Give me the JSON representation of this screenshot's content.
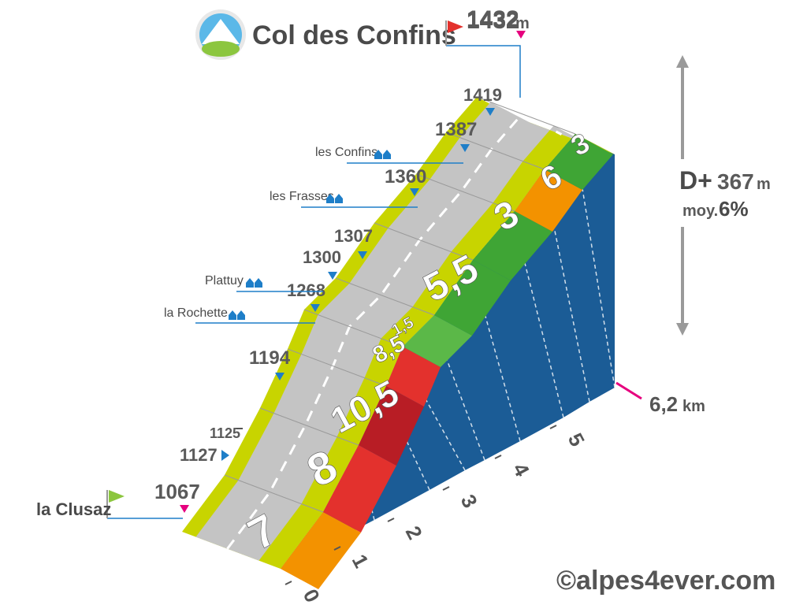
{
  "title": "Col des Confins",
  "summit": {
    "altitude": "1432",
    "unit": "m"
  },
  "start": {
    "name": "la Clusaz",
    "altitude": "1067"
  },
  "stats": {
    "gain_label": "D+",
    "gain_value": "367",
    "gain_unit": "m",
    "avg_label": "moy.",
    "avg_value": "6%"
  },
  "distance": {
    "value": "6,2",
    "unit": "km"
  },
  "watermark": "©alpes4ever.com",
  "colors": {
    "road_edge": "#c8d400",
    "road": "#c4c4c4",
    "side": "#1b5c96",
    "orange": "#f39200",
    "red": "#e3312d",
    "darkred": "#b81d25",
    "green": "#3fa535",
    "lightgreen": "#5bb848",
    "magenta": "#e6007e",
    "blue": "#1e7ec8"
  },
  "chart_data": {
    "type": "area",
    "title": "Col des Confins",
    "xlabel": "km",
    "ylabel": "m",
    "x_ticks": [
      "0",
      "1",
      "2",
      "3",
      "4",
      "5"
    ],
    "segments": [
      {
        "grade": "7",
        "color": "#f39200"
      },
      {
        "grade": "8",
        "color": "#e3312d"
      },
      {
        "grade": "10,5",
        "color": "#b81d25"
      },
      {
        "grade": "8,5",
        "color": "#e3312d"
      },
      {
        "grade": "1,5",
        "color": "#5bb848"
      },
      {
        "grade": "5,5",
        "color": "#3fa535"
      },
      {
        "grade": "3",
        "color": "#3fa535"
      },
      {
        "grade": "6",
        "color": "#f39200"
      },
      {
        "grade": "3",
        "color": "#3fa535"
      }
    ],
    "altitude_markers": [
      {
        "value": "1067",
        "color": "#e6007e"
      },
      {
        "value": "1127",
        "color": "#1e7ec8"
      },
      {
        "value": "1125",
        "color": "#1e7ec8"
      },
      {
        "value": "1194",
        "color": "#1e7ec8"
      },
      {
        "value": "1268",
        "color": "#1e7ec8"
      },
      {
        "value": "1300",
        "color": "#1e7ec8"
      },
      {
        "value": "1307",
        "color": "#1e7ec8"
      },
      {
        "value": "1360",
        "color": "#1e7ec8"
      },
      {
        "value": "1387",
        "color": "#1e7ec8"
      },
      {
        "value": "1419",
        "color": "#1e7ec8"
      },
      {
        "value": "1432",
        "color": "#e6007e"
      }
    ],
    "places": [
      {
        "name": "la Rochette"
      },
      {
        "name": "Plattuy"
      },
      {
        "name": "les Frasses"
      },
      {
        "name": "les Confins"
      }
    ]
  }
}
